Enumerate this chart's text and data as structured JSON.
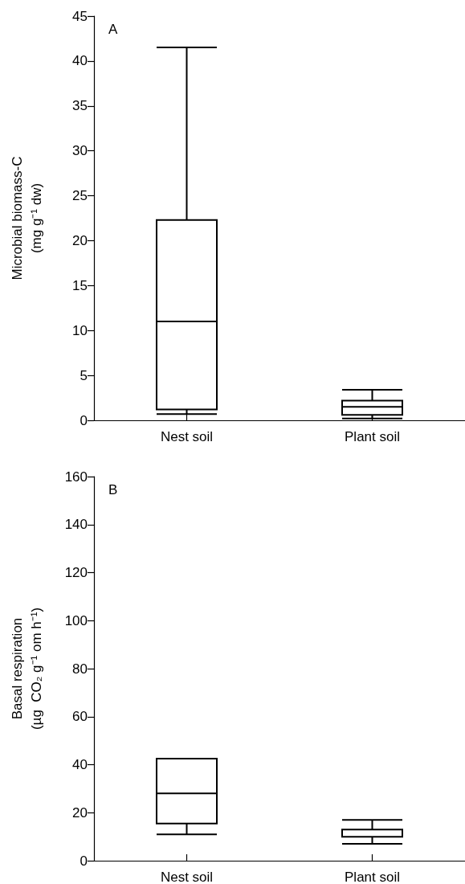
{
  "chart_data": [
    {
      "type": "box",
      "categories": [
        "Nest soil",
        "Plant soil"
      ],
      "ylabel": "Microbial biomass-C\n(mg g⁻¹ dw)",
      "ylim": [
        0,
        45
      ],
      "yticks": [
        0,
        5,
        10,
        15,
        20,
        25,
        30,
        35,
        40,
        45
      ],
      "annotations": [
        "A"
      ],
      "boxes": [
        {
          "low": 0.7,
          "q1": 1.2,
          "median": 11,
          "q3": 22.3,
          "high": 41.5
        },
        {
          "low": 0.2,
          "q1": 0.6,
          "median": 1.5,
          "q3": 2.2,
          "high": 3.4
        }
      ]
    },
    {
      "type": "box",
      "categories": [
        "Nest soil",
        "Plant soil"
      ],
      "ylabel": "Basal respiration\n(µg  CO₂ g⁻¹ om h⁻¹)",
      "ylim": [
        0,
        160
      ],
      "yticks": [
        0,
        20,
        40,
        60,
        80,
        100,
        120,
        140,
        160
      ],
      "annotations": [
        "B"
      ],
      "boxes": [
        {
          "low": 11,
          "q1": 15.5,
          "median": 28,
          "q3": 42.5,
          "high": 42.5
        },
        {
          "low": 7,
          "q1": 10,
          "median": 10,
          "q3": 13,
          "high": 17
        }
      ]
    }
  ]
}
